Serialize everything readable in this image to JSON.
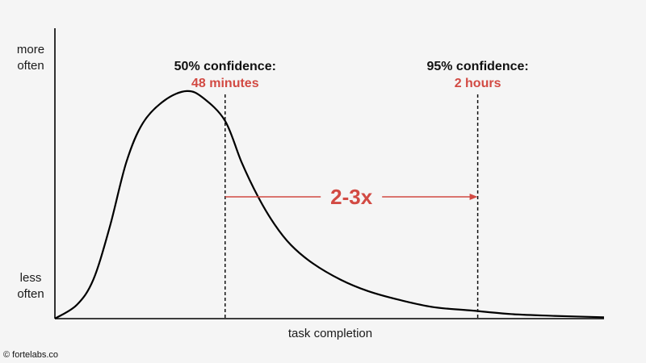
{
  "chart_data": {
    "type": "line",
    "xlabel": "task completion",
    "y_axis": {
      "top_label_lines": [
        "more",
        "often"
      ],
      "bottom_label_lines": [
        "less",
        "often"
      ]
    },
    "grid": false,
    "legend": "none",
    "x": [
      0.0,
      0.04,
      0.07,
      0.1,
      0.13,
      0.16,
      0.2,
      0.24,
      0.27,
      0.31,
      0.34,
      0.37,
      0.4,
      0.43,
      0.47,
      0.52,
      0.57,
      0.63,
      0.69,
      0.76,
      0.83,
      0.91,
      1.0
    ],
    "y": [
      0.0,
      0.06,
      0.17,
      0.4,
      0.68,
      0.85,
      0.95,
      0.99,
      0.96,
      0.86,
      0.68,
      0.53,
      0.41,
      0.32,
      0.24,
      0.17,
      0.12,
      0.08,
      0.05,
      0.035,
      0.02,
      0.012,
      0.006
    ],
    "markers": [
      {
        "x": 0.31,
        "label": "50% confidence:",
        "value_label": "48 minutes"
      },
      {
        "x": 0.77,
        "label": "95% confidence:",
        "value_label": "2 hours"
      }
    ],
    "annotation": {
      "text": "2-3x",
      "from_x": 0.31,
      "to_x": 0.77
    },
    "colors": {
      "curve": "#000000",
      "accent": "#d24a43",
      "background": "#f5f5f5"
    }
  },
  "footer": {
    "copyright": "© fortelabs.co"
  }
}
